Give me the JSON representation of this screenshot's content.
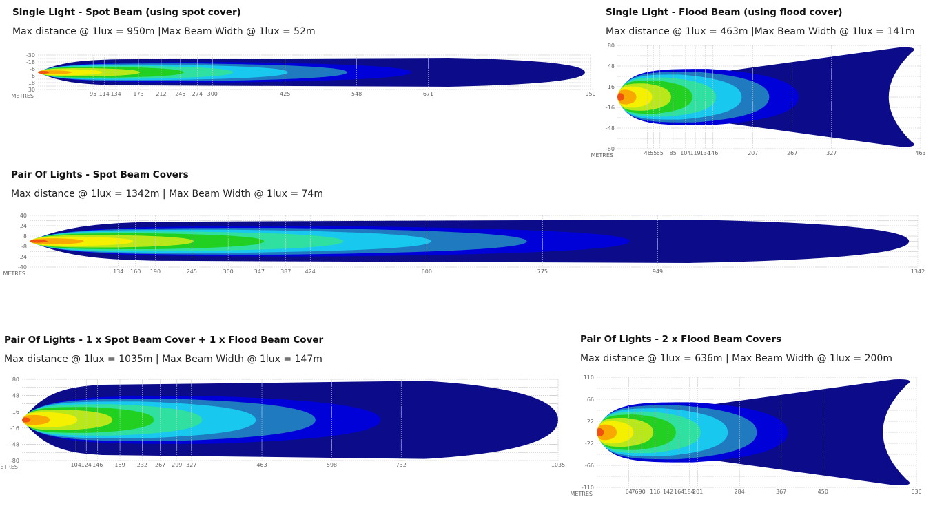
{
  "chart_data": [
    {
      "type": "heatmap",
      "title": "Single Light - Spot Beam (using spot cover)",
      "subtitle": "Max distance @ 1lux = 950m |Max Beam Width @ 1lux = 52m",
      "xlabel": "METRES",
      "xlim": [
        0,
        950
      ],
      "ylim": [
        -30,
        30
      ],
      "yticks": [
        "-30",
        "-18",
        "-6",
        "6",
        "18",
        "30"
      ],
      "xticks": [
        95,
        114,
        134,
        173,
        212,
        245,
        274,
        300,
        425,
        548,
        671,
        950
      ],
      "max_distance_m": 950,
      "max_beam_width_m": 52,
      "pattern": "spot"
    },
    {
      "type": "heatmap",
      "title": "Single Light - Flood Beam (using flood cover)",
      "subtitle": "Max distance @ 1lux = 463m |Max Beam Width @ 1lux = 141m",
      "xlabel": "METRES",
      "xlim": [
        0,
        463
      ],
      "ylim": [
        -80,
        80
      ],
      "yticks": [
        "80",
        "48",
        "16",
        "-16",
        "-48",
        "-80"
      ],
      "xticks": [
        46,
        55,
        65,
        85,
        104,
        119,
        134,
        146,
        207,
        267,
        327,
        463
      ],
      "max_distance_m": 463,
      "max_beam_width_m": 141,
      "pattern": "flood"
    },
    {
      "type": "heatmap",
      "title": "Pair Of Lights - Spot Beam Covers",
      "subtitle": "Max distance @ 1lux = 1342m | Max Beam Width @ 1lux = 74m",
      "xlabel": "METRES",
      "xlim": [
        0,
        1342
      ],
      "ylim": [
        -40,
        40
      ],
      "yticks": [
        "40",
        "24",
        "8",
        "-8",
        "-24",
        "-40"
      ],
      "xticks": [
        134,
        160,
        190,
        245,
        300,
        347,
        387,
        424,
        600,
        775,
        949,
        1342
      ],
      "max_distance_m": 1342,
      "max_beam_width_m": 74,
      "pattern": "spot"
    },
    {
      "type": "heatmap",
      "title": "Pair Of Lights - 1 x Spot Beam Cover + 1 x Flood Beam Cover",
      "subtitle": "Max distance @ 1lux = 1035m | Max Beam Width @ 1lux = 147m",
      "xlabel": "METRES",
      "xlim": [
        0,
        1035
      ],
      "ylim": [
        -80,
        80
      ],
      "yticks": [
        "80",
        "48",
        "16",
        "-16",
        "-48",
        "-80"
      ],
      "xticks": [
        104,
        124,
        146,
        189,
        232,
        267,
        299,
        327,
        463,
        598,
        732,
        1035
      ],
      "max_distance_m": 1035,
      "max_beam_width_m": 147,
      "pattern": "combo"
    },
    {
      "type": "heatmap",
      "title": "Pair Of Lights -  2 x Flood Beam Covers",
      "subtitle": "Max distance @ 1lux = 636m | Max Beam Width @ 1lux = 200m",
      "xlabel": "METRES",
      "xlim": [
        0,
        636
      ],
      "ylim": [
        -110,
        110
      ],
      "yticks": [
        "110",
        "66",
        "22",
        "-22",
        "-66",
        "-110"
      ],
      "xticks": [
        64,
        76,
        90,
        116,
        142,
        164,
        184,
        201,
        284,
        367,
        450,
        636
      ],
      "max_distance_m": 636,
      "max_beam_width_m": 200,
      "pattern": "flood"
    }
  ],
  "colors": [
    "#0c0c8a",
    "#0000d8",
    "#1f7ac0",
    "#18c8ee",
    "#30e0a0",
    "#22d022",
    "#b8e81a",
    "#f4f000",
    "#f8a800",
    "#f05010"
  ]
}
